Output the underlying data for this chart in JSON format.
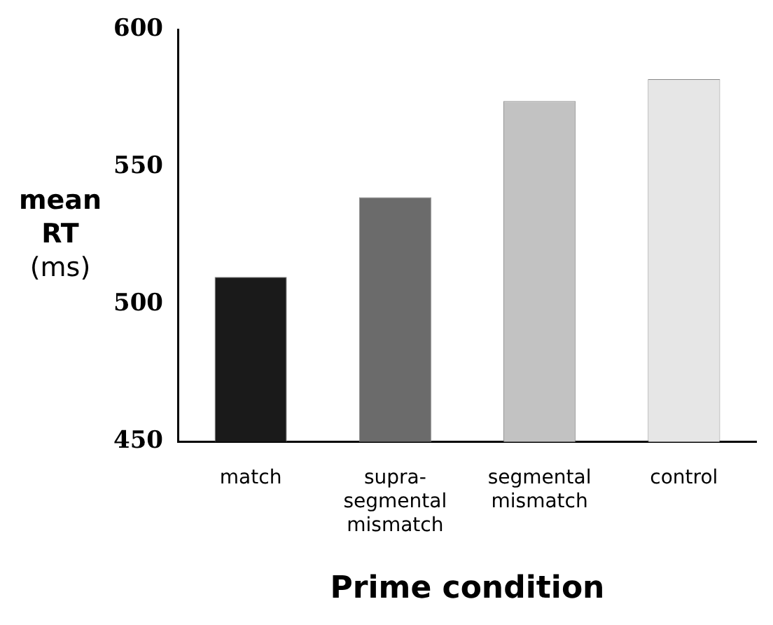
{
  "chart_data": {
    "type": "bar",
    "xlabel": "Prime condition",
    "ylabel": "mean RT (ms)",
    "categories": [
      "match",
      "supra-segmental mismatch",
      "segmental mismatch",
      "control"
    ],
    "values": [
      510,
      539,
      574,
      582
    ],
    "colors": [
      "#1a1a1a",
      "#6b6b6b",
      "#c2c2c2",
      "#e6e6e6"
    ],
    "ylim": [
      450,
      600
    ],
    "yticks": [
      450,
      500,
      550,
      600
    ],
    "grid": false,
    "legend": false
  }
}
